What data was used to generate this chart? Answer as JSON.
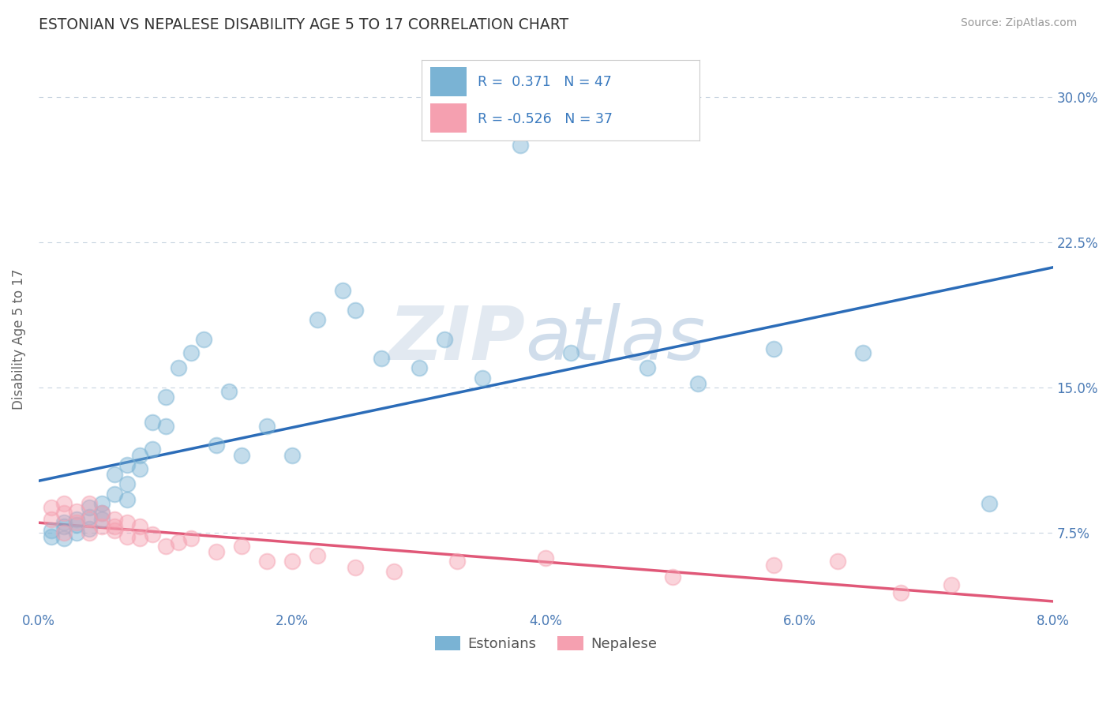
{
  "title": "ESTONIAN VS NEPALESE DISABILITY AGE 5 TO 17 CORRELATION CHART",
  "source": "Source: ZipAtlas.com",
  "ylabel_label": "Disability Age 5 to 17",
  "xlim": [
    0.0,
    0.08
  ],
  "ylim": [
    0.035,
    0.315
  ],
  "xticks": [
    0.0,
    0.01,
    0.02,
    0.03,
    0.04,
    0.05,
    0.06,
    0.07,
    0.08
  ],
  "xtick_labels": [
    "0.0%",
    "",
    "2.0%",
    "",
    "4.0%",
    "",
    "6.0%",
    "",
    "8.0%"
  ],
  "ytick_labels": [
    "7.5%",
    "15.0%",
    "22.5%",
    "30.0%"
  ],
  "yticks": [
    0.075,
    0.15,
    0.225,
    0.3
  ],
  "blue_color": "#7ab3d4",
  "pink_color": "#f5a0b0",
  "trend_blue": "#2b6cb8",
  "trend_pink": "#e05878",
  "legend_R1": "R =  0.371",
  "legend_N1": "N = 47",
  "legend_R2": "R = -0.526",
  "legend_N2": "N = 37",
  "legend_label1": "Estonians",
  "legend_label2": "Nepalese",
  "background_color": "#ffffff",
  "grid_color": "#c8d4e0",
  "estonian_x": [
    0.001,
    0.001,
    0.002,
    0.002,
    0.002,
    0.003,
    0.003,
    0.003,
    0.004,
    0.004,
    0.004,
    0.005,
    0.005,
    0.005,
    0.006,
    0.006,
    0.007,
    0.007,
    0.007,
    0.008,
    0.008,
    0.009,
    0.009,
    0.01,
    0.01,
    0.011,
    0.012,
    0.013,
    0.014,
    0.015,
    0.016,
    0.018,
    0.02,
    0.022,
    0.024,
    0.025,
    0.027,
    0.03,
    0.032,
    0.035,
    0.038,
    0.042,
    0.048,
    0.052,
    0.058,
    0.065,
    0.075
  ],
  "estonian_y": [
    0.073,
    0.076,
    0.072,
    0.08,
    0.078,
    0.082,
    0.075,
    0.079,
    0.083,
    0.077,
    0.088,
    0.082,
    0.09,
    0.085,
    0.095,
    0.105,
    0.092,
    0.1,
    0.11,
    0.108,
    0.115,
    0.118,
    0.132,
    0.13,
    0.145,
    0.16,
    0.168,
    0.175,
    0.12,
    0.148,
    0.115,
    0.13,
    0.115,
    0.185,
    0.2,
    0.19,
    0.165,
    0.16,
    0.175,
    0.155,
    0.275,
    0.168,
    0.16,
    0.152,
    0.17,
    0.168,
    0.09
  ],
  "nepalese_x": [
    0.001,
    0.001,
    0.002,
    0.002,
    0.002,
    0.003,
    0.003,
    0.004,
    0.004,
    0.004,
    0.005,
    0.005,
    0.006,
    0.006,
    0.006,
    0.007,
    0.007,
    0.008,
    0.008,
    0.009,
    0.01,
    0.011,
    0.012,
    0.014,
    0.016,
    0.018,
    0.02,
    0.022,
    0.025,
    0.028,
    0.033,
    0.04,
    0.05,
    0.058,
    0.063,
    0.068,
    0.072
  ],
  "nepalese_y": [
    0.082,
    0.088,
    0.085,
    0.075,
    0.09,
    0.08,
    0.086,
    0.075,
    0.082,
    0.09,
    0.078,
    0.085,
    0.078,
    0.082,
    0.076,
    0.073,
    0.08,
    0.072,
    0.078,
    0.074,
    0.068,
    0.07,
    0.072,
    0.065,
    0.068,
    0.06,
    0.06,
    0.063,
    0.057,
    0.055,
    0.06,
    0.062,
    0.052,
    0.058,
    0.06,
    0.044,
    0.048
  ]
}
